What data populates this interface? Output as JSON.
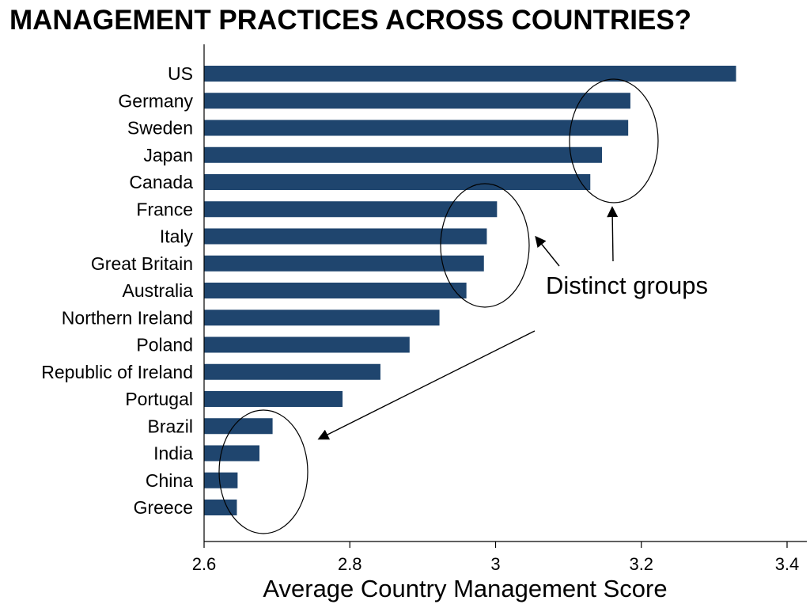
{
  "slide": {
    "title": "MANAGEMENT PRACTICES ACROSS COUNTRIES?"
  },
  "chart_data": {
    "type": "bar",
    "orientation": "horizontal",
    "categories": [
      "US",
      "Germany",
      "Sweden",
      "Japan",
      "Canada",
      "France",
      "Italy",
      "Great Britain",
      "Australia",
      "Northern Ireland",
      "Poland",
      "Republic of Ireland",
      "Portugal",
      "Brazil",
      "India",
      "China",
      "Greece"
    ],
    "values": [
      3.33,
      3.185,
      3.182,
      3.146,
      3.13,
      3.002,
      2.988,
      2.984,
      2.96,
      2.923,
      2.882,
      2.842,
      2.79,
      2.694,
      2.676,
      2.646,
      2.645
    ],
    "title": "",
    "xlabel": "Average Country Management Score",
    "ylabel": "",
    "xlim": [
      2.6,
      3.4
    ],
    "xticks": [
      "2.6",
      "2.8",
      "3",
      "3.2",
      "3.4"
    ],
    "grid": false,
    "bar_color": "#1f456e",
    "annotations": [
      {
        "text": "Distinct groups"
      }
    ]
  }
}
